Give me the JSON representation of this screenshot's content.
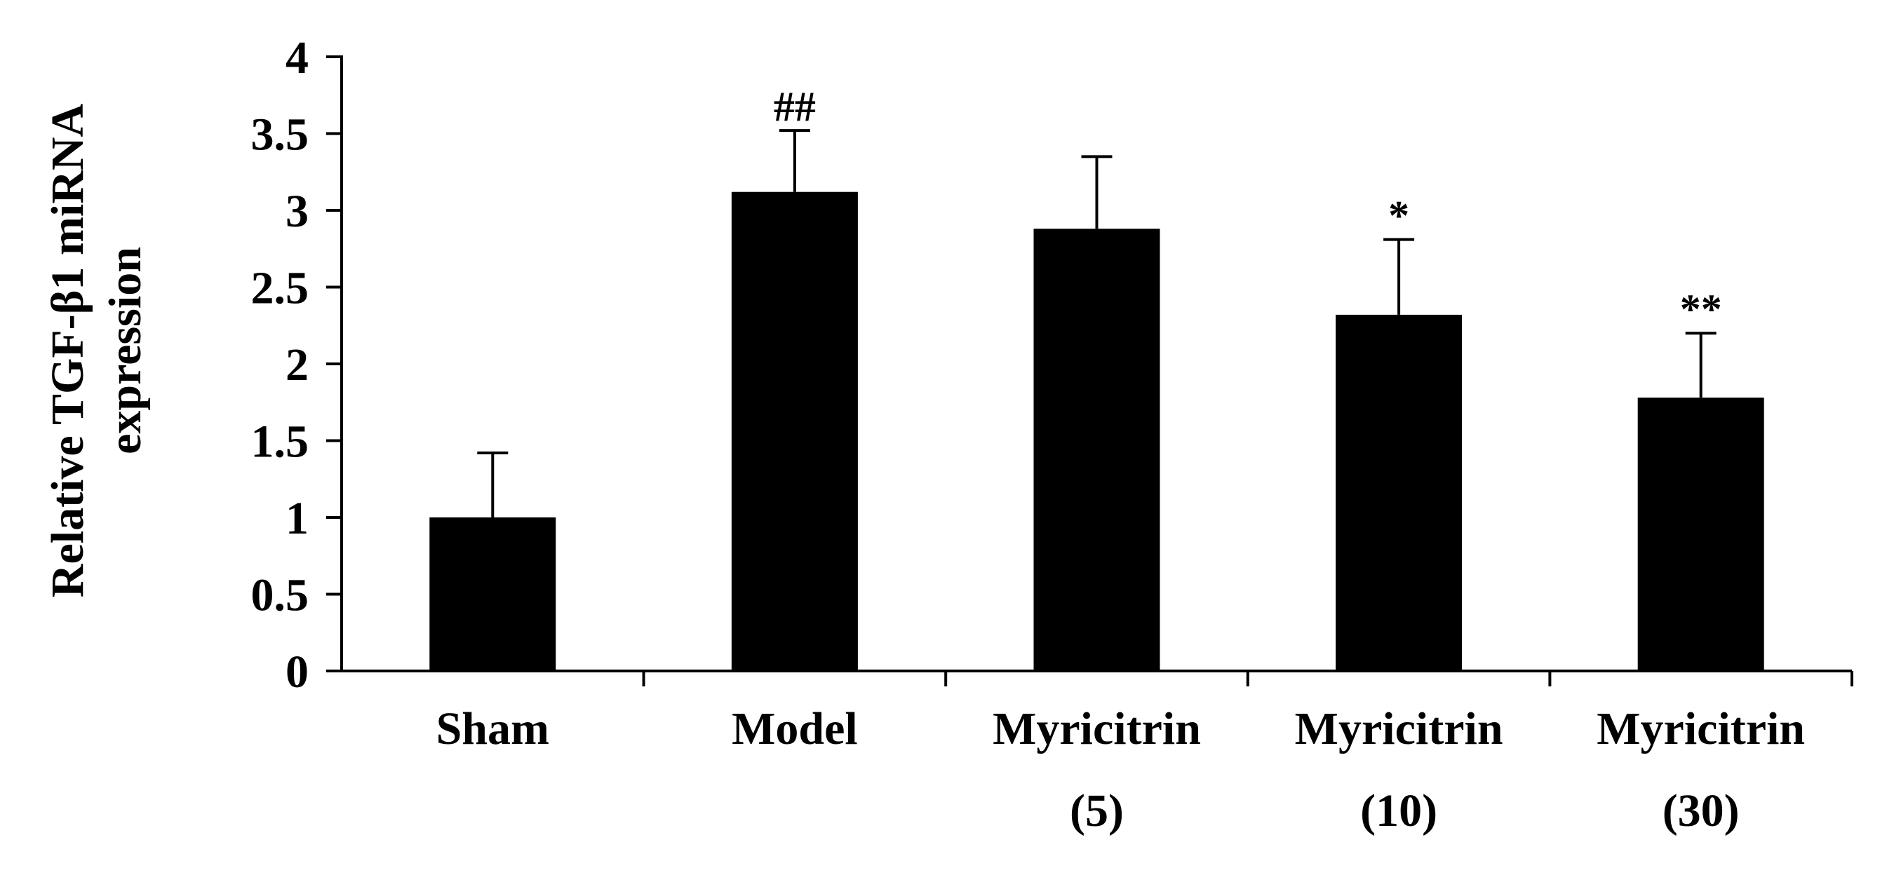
{
  "chart_data": {
    "type": "bar",
    "categories": [
      [
        "Sham"
      ],
      [
        "Model"
      ],
      [
        "Myricitrin",
        "(5)"
      ],
      [
        "Myricitrin",
        "(10)"
      ],
      [
        "Myricitrin",
        "(30)"
      ]
    ],
    "values": [
      1.0,
      3.12,
      2.88,
      2.32,
      1.78
    ],
    "error": [
      0.42,
      0.4,
      0.47,
      0.49,
      0.42
    ],
    "annotations": [
      "",
      "##",
      "",
      "*",
      "**"
    ],
    "ylabel": [
      "Relative TGF-β1 miRNA",
      "expression"
    ],
    "ylim": [
      0,
      4
    ],
    "yticks": [
      {
        "value": 0,
        "label": "0"
      },
      {
        "value": 0.5,
        "label": "0.5"
      },
      {
        "value": 1,
        "label": "1"
      },
      {
        "value": 1.5,
        "label": "1.5"
      },
      {
        "value": 2,
        "label": "2"
      },
      {
        "value": 2.5,
        "label": "2.5"
      },
      {
        "value": 3,
        "label": "3"
      },
      {
        "value": 3.5,
        "label": "3.5"
      },
      {
        "value": 4,
        "label": "4"
      }
    ],
    "bar_color": "#000000",
    "grid": false
  }
}
